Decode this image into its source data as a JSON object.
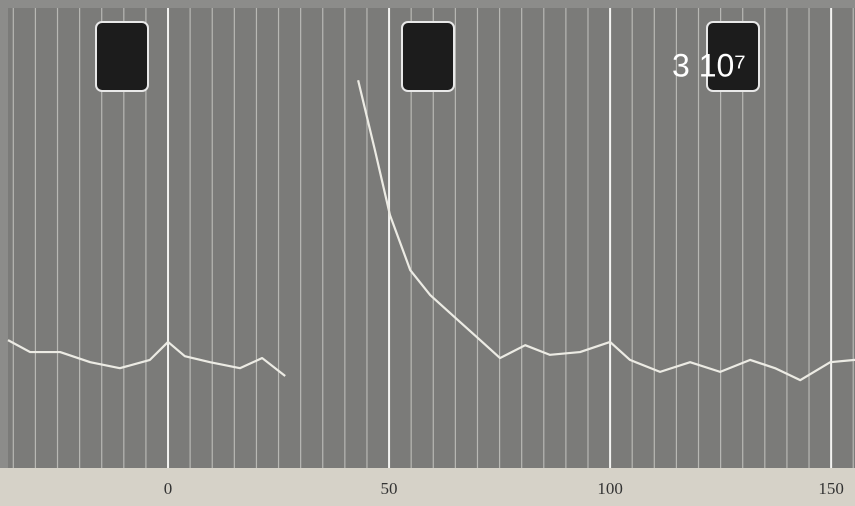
{
  "chart_data": {
    "type": "line",
    "annotation": "3 10⁷",
    "x": [
      -36.2,
      -31.2,
      -24.4,
      -17.6,
      -10.9,
      -4.1,
      0,
      3.8,
      9.5,
      16.3,
      21.3,
      26.5,
      35,
      43.0,
      46.8,
      50.2,
      54.8,
      59.3,
      66.1,
      70.6,
      75.1,
      80.8,
      86.4,
      93.2,
      100,
      104.5,
      111.3,
      118.1,
      124.9,
      131.7,
      137.3,
      143.0,
      149.8,
      155.4
    ],
    "series": [
      {
        "color": "#ecebe4",
        "values": [
          27.8,
          25.2,
          25.2,
          23.0,
          21.7,
          23.5,
          27.4,
          24.3,
          23.0,
          21.7,
          23.9,
          20.0,
          null,
          84.3,
          69.1,
          55.0,
          43.0,
          37.6,
          31.7,
          27.8,
          23.9,
          26.7,
          24.6,
          25.2,
          27.4,
          23.5,
          20.9,
          23.0,
          20.9,
          23.5,
          21.7,
          19.1,
          23.0,
          23.5
        ]
      }
    ],
    "xlim": [
      -36.2,
      155.4
    ],
    "ylim": [
      0,
      100
    ],
    "xticks": [
      0,
      50,
      100,
      150
    ],
    "x_minor_ticks": [
      -35,
      -30,
      -25,
      -20,
      -15,
      -10,
      -5,
      5,
      10,
      15,
      20,
      25,
      30,
      35,
      40,
      45,
      55,
      60,
      65,
      70,
      75,
      80,
      85,
      90,
      95,
      105,
      110,
      115,
      120,
      125,
      130,
      135,
      140,
      145,
      155
    ],
    "grid": true
  }
}
